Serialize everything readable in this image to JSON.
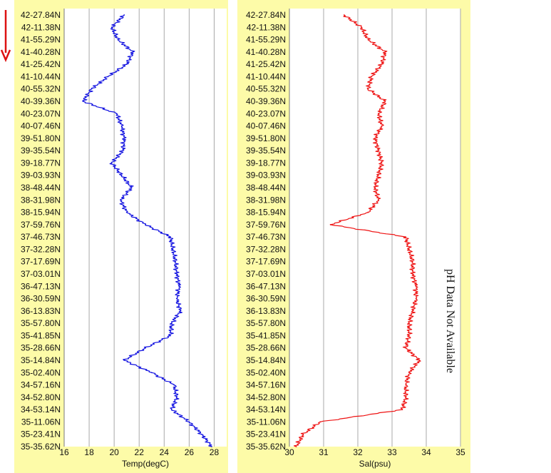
{
  "side_text": "pH Data Not Available",
  "colors": {
    "panel_bg": "#fdfba8",
    "plot_bg": "#ffffff",
    "grid": "#a8a8a8",
    "temp": "#1010e0",
    "sal": "#ee1111",
    "arrow": "#dd1111"
  },
  "chart_data": [
    {
      "type": "line",
      "xlabel": "Temp(degC)",
      "xlim": [
        16,
        29
      ],
      "xticks": [
        16,
        18,
        20,
        22,
        24,
        26,
        28
      ],
      "grid": "vertical",
      "categories": [
        "42-27.84N",
        "42-11.38N",
        "41-55.29N",
        "41-40.28N",
        "41-25.42N",
        "41-10.44N",
        "40-55.32N",
        "40-39.36N",
        "40-23.07N",
        "40-07.46N",
        "39-51.80N",
        "39-35.54N",
        "39-18.77N",
        "39-03.93N",
        "38-48.44N",
        "38-31.98N",
        "38-15.94N",
        "37-59.76N",
        "37-46.73N",
        "37-32.28N",
        "37-17.69N",
        "37-03.01N",
        "36-47.13N",
        "36-30.59N",
        "36-13.83N",
        "35-57.80N",
        "35-41.85N",
        "35-28.66N",
        "35-14.84N",
        "35-02.40N",
        "34-57.16N",
        "34-52.80N",
        "34-53.14N",
        "35-11.06N",
        "35-23.41N",
        "35-35.62N"
      ],
      "series": [
        {
          "values": [
            20.8,
            19.8,
            20.3,
            21.5,
            21.0,
            19.5,
            18.2,
            17.5,
            20.2,
            20.6,
            20.8,
            20.7,
            19.8,
            20.6,
            21.4,
            20.5,
            21.0,
            22.5,
            24.5,
            24.7,
            24.9,
            25.0,
            25.2,
            25.0,
            25.3,
            24.6,
            24.5,
            22.5,
            20.8,
            23.0,
            24.8,
            25.0,
            24.6,
            26.0,
            27.0,
            27.8
          ]
        }
      ]
    },
    {
      "type": "line",
      "xlabel": "Sal(psu)",
      "xlim": [
        30,
        35
      ],
      "xticks": [
        30,
        31,
        32,
        33,
        34,
        35
      ],
      "grid": "vertical",
      "categories": [
        "42-27.84N",
        "42-11.38N",
        "41-55.29N",
        "41-40.28N",
        "41-25.42N",
        "41-10.44N",
        "40-55.32N",
        "40-39.36N",
        "40-23.07N",
        "40-07.46N",
        "39-51.80N",
        "39-35.54N",
        "39-18.77N",
        "39-03.93N",
        "38-48.44N",
        "38-31.98N",
        "38-15.94N",
        "37-59.76N",
        "37-46.73N",
        "37-32.28N",
        "37-17.69N",
        "37-03.01N",
        "36-47.13N",
        "36-30.59N",
        "36-13.83N",
        "35-57.80N",
        "35-41.85N",
        "35-28.66N",
        "35-14.84N",
        "35-02.40N",
        "34-57.16N",
        "34-52.80N",
        "34-53.14N",
        "35-11.06N",
        "35-23.41N",
        "35-35.62N"
      ],
      "series": [
        {
          "values": [
            31.6,
            32.1,
            32.3,
            32.8,
            32.7,
            32.4,
            32.3,
            32.8,
            32.6,
            32.7,
            32.5,
            32.6,
            32.7,
            32.6,
            32.5,
            32.6,
            32.3,
            31.2,
            33.4,
            33.5,
            33.6,
            33.6,
            33.7,
            33.7,
            33.6,
            33.5,
            33.5,
            33.4,
            33.8,
            33.5,
            33.4,
            33.4,
            33.3,
            30.9,
            30.4,
            30.2
          ]
        }
      ]
    }
  ]
}
